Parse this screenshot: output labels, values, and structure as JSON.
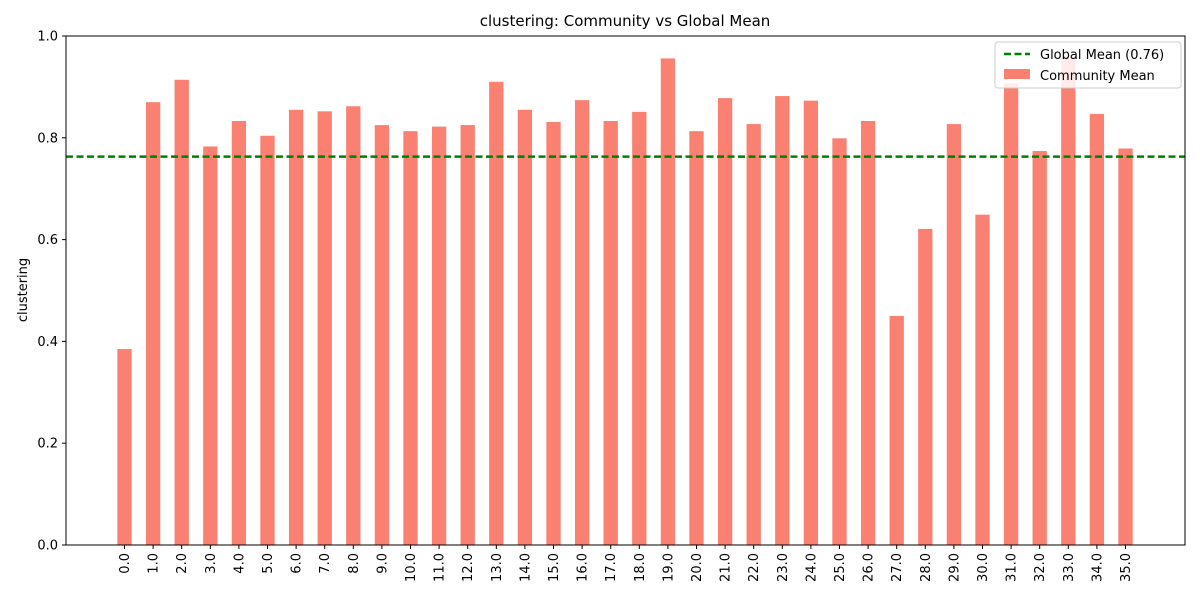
{
  "chart_data": {
    "type": "bar",
    "title": "clustering: Community vs Global Mean",
    "xlabel": "",
    "ylabel": "clustering",
    "categories": [
      "0.0",
      "1.0",
      "2.0",
      "3.0",
      "4.0",
      "5.0",
      "6.0",
      "7.0",
      "8.0",
      "9.0",
      "10.0",
      "11.0",
      "12.0",
      "13.0",
      "14.0",
      "15.0",
      "16.0",
      "17.0",
      "18.0",
      "19.0",
      "20.0",
      "21.0",
      "22.0",
      "23.0",
      "24.0",
      "25.0",
      "26.0",
      "27.0",
      "28.0",
      "29.0",
      "30.0",
      "31.0",
      "32.0",
      "33.0",
      "34.0",
      "35.0"
    ],
    "series": [
      {
        "name": "Community Mean",
        "color": "#fa8072",
        "values": [
          0.385,
          0.87,
          0.914,
          0.783,
          0.833,
          0.804,
          0.855,
          0.852,
          0.862,
          0.825,
          0.813,
          0.822,
          0.825,
          0.91,
          0.855,
          0.831,
          0.874,
          0.833,
          0.851,
          0.956,
          0.813,
          0.878,
          0.827,
          0.882,
          0.873,
          0.799,
          0.833,
          0.45,
          0.621,
          0.827,
          0.649,
          0.907,
          0.774,
          0.957,
          0.847,
          0.779
        ]
      }
    ],
    "reference_line": {
      "name": "Global Mean (0.76)",
      "value": 0.763,
      "color": "#008000",
      "style": "dashed"
    },
    "ylim": [
      0,
      1.0
    ],
    "yticks": [
      "0.0",
      "0.2",
      "0.4",
      "0.6",
      "0.8",
      "1.0"
    ],
    "grid": false,
    "legend_position": "top-right"
  }
}
